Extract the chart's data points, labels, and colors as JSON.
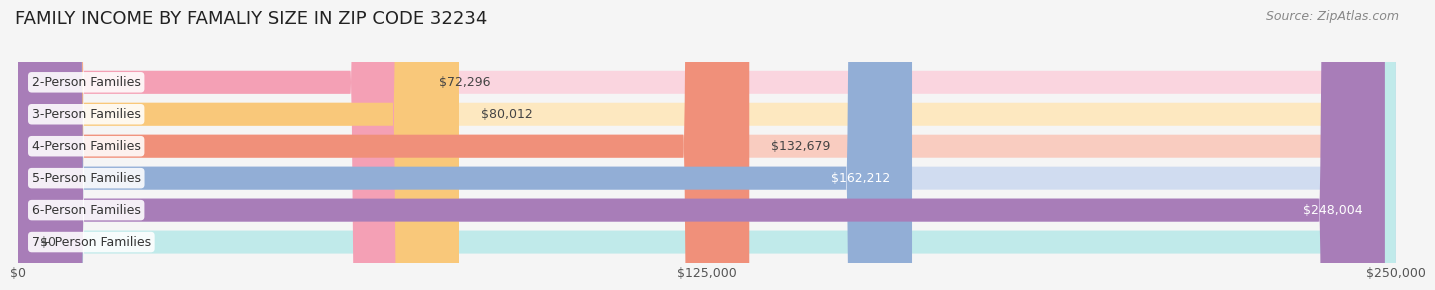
{
  "title": "FAMILY INCOME BY FAMALIY SIZE IN ZIP CODE 32234",
  "source": "Source: ZipAtlas.com",
  "categories": [
    "2-Person Families",
    "3-Person Families",
    "4-Person Families",
    "5-Person Families",
    "6-Person Families",
    "7+ Person Families"
  ],
  "values": [
    72296,
    80012,
    132679,
    162212,
    248004,
    0
  ],
  "labels": [
    "$72,296",
    "$80,012",
    "$132,679",
    "$162,212",
    "$248,004",
    "$0"
  ],
  "bar_colors": [
    "#F4A0B5",
    "#F9C87A",
    "#F0907A",
    "#92AED6",
    "#A87DB8",
    "#72C8C0"
  ],
  "bar_bg_colors": [
    "#FAD5DF",
    "#FDE8C0",
    "#F9CCC0",
    "#D0DCF0",
    "#D8C0E8",
    "#C0EAEA"
  ],
  "xlim": [
    0,
    250000
  ],
  "xticks": [
    0,
    125000,
    250000
  ],
  "xticklabels": [
    "$0",
    "$125,000",
    "$250,000"
  ],
  "title_fontsize": 13,
  "source_fontsize": 9,
  "label_fontsize": 9,
  "tick_fontsize": 9,
  "cat_fontsize": 9,
  "background_color": "#f5f5f5",
  "bar_height": 0.72
}
